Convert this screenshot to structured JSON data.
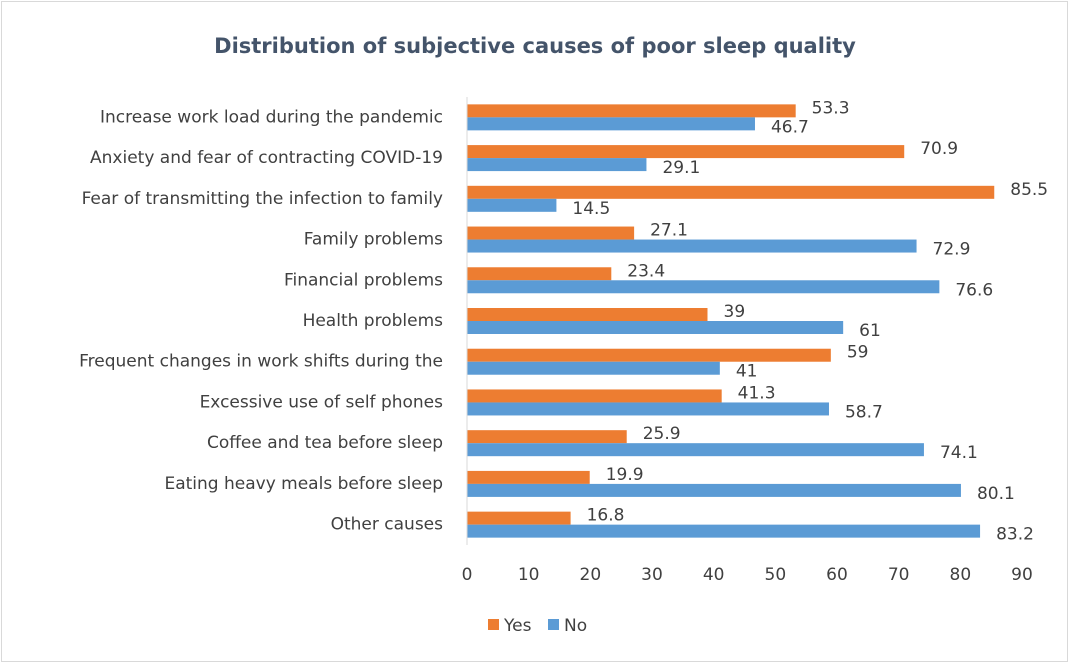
{
  "chart_data": {
    "type": "bar",
    "orientation": "horizontal",
    "title": "Distribution of subjective causes of poor sleep quality",
    "categories": [
      "Increase work load during the pandemic",
      "Anxiety and fear of contracting COVID-19",
      "Fear of transmitting the infection to family",
      "Family problems",
      "Financial problems",
      "Health problems",
      "Frequent changes in work shifts during the",
      "Excessive use of self phones",
      "Coffee and tea before sleep",
      "Eating heavy meals before sleep",
      "Other causes"
    ],
    "series": [
      {
        "name": "Yes",
        "color": "#ed7d31",
        "values": [
          53.3,
          70.9,
          85.5,
          27.1,
          23.4,
          39,
          59,
          41.3,
          25.9,
          19.9,
          16.8
        ]
      },
      {
        "name": "No",
        "color": "#5b9bd5",
        "values": [
          46.7,
          29.1,
          14.5,
          72.9,
          76.6,
          61,
          41,
          58.7,
          74.1,
          80.1,
          83.2
        ]
      }
    ],
    "xlim": [
      0,
      90
    ],
    "xticks": [
      0,
      10,
      20,
      30,
      40,
      50,
      60,
      70,
      80,
      90
    ],
    "grid": false,
    "legend": "bottom"
  }
}
